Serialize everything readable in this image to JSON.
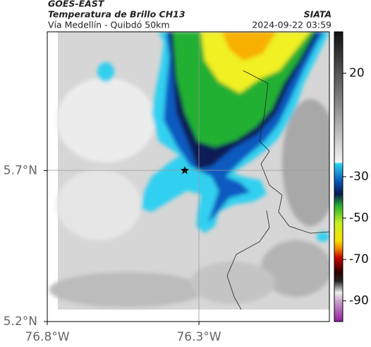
{
  "header": {
    "source": "GOES-EAST",
    "title": "Temperatura de Brillo CH13",
    "subtitle": "Vía Medellín - Quibdó 50km",
    "brand": "SIATA",
    "timestamp": "2024-09-22 03:59"
  },
  "map": {
    "xlim": [
      -76.8,
      -75.87
    ],
    "ylim": [
      5.2,
      6.16
    ],
    "xticks": [
      {
        "value": -76.8,
        "label": "76.8°W"
      },
      {
        "value": -76.3,
        "label": "76.3°W"
      }
    ],
    "yticks": [
      {
        "value": 5.2,
        "label": "5.2°N"
      },
      {
        "value": 5.7,
        "label": "5.7°N"
      }
    ]
  },
  "colorbar": {
    "lim": [
      -100,
      40
    ],
    "ticks": [
      20,
      -30,
      -50,
      -70,
      -90
    ]
  }
}
